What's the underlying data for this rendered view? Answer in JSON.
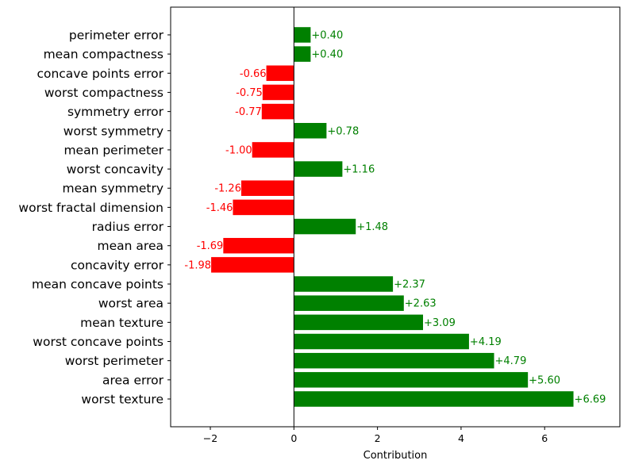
{
  "chart_data": {
    "type": "bar",
    "orientation": "horizontal",
    "xlabel": "Contribution",
    "ylabel": "",
    "xlim": [
      -2.95,
      7.8
    ],
    "x_ticks": [
      -2,
      0,
      2,
      4,
      6
    ],
    "x_tick_labels": [
      "−2",
      "0",
      "2",
      "4",
      "6"
    ],
    "grid": false,
    "colors": {
      "positive": "#008000",
      "negative": "#ff0000",
      "zero_line": "#000000"
    },
    "categories": [
      "worst texture",
      "area error",
      "worst perimeter",
      "worst concave points",
      "mean texture",
      "worst area",
      "mean concave points",
      "concavity error",
      "mean area",
      "radius error",
      "worst fractal dimension",
      "mean symmetry",
      "worst concavity",
      "mean perimeter",
      "worst symmetry",
      "symmetry error",
      "worst compactness",
      "concave points error",
      "mean compactness",
      "perimeter error"
    ],
    "values": [
      6.69,
      5.6,
      4.79,
      4.19,
      3.09,
      2.63,
      2.37,
      -1.98,
      -1.69,
      1.48,
      -1.46,
      -1.26,
      1.16,
      -1.0,
      0.78,
      -0.77,
      -0.75,
      -0.66,
      0.4,
      0.4
    ],
    "data_labels": [
      "+6.69",
      "+5.60",
      "+4.79",
      "+4.19",
      "+3.09",
      "+2.63",
      "+2.37",
      "-1.98",
      "-1.69",
      "+1.48",
      "-1.46",
      "-1.26",
      "+1.16",
      "-1.00",
      "+0.78",
      "-0.77",
      "-0.75",
      "-0.66",
      "+0.40",
      "+0.40"
    ]
  }
}
